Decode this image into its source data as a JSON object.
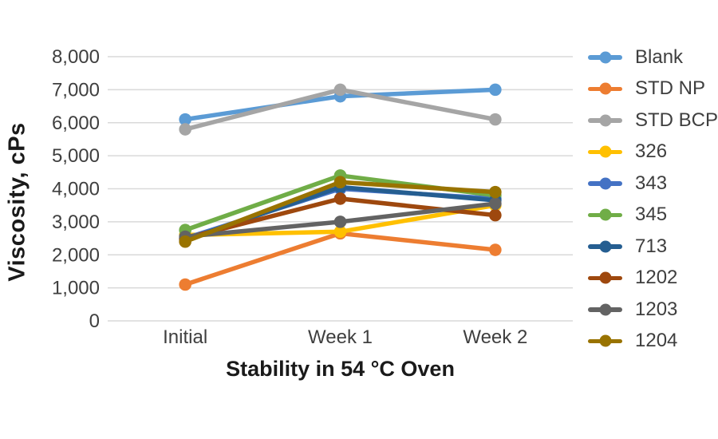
{
  "chart_data": {
    "type": "line",
    "categories": [
      "Initial",
      "Week 1",
      "Week 2"
    ],
    "series": [
      {
        "name": "Blank",
        "color": "#5B9BD5",
        "values": [
          6100,
          6800,
          7000
        ]
      },
      {
        "name": "STD NP",
        "color": "#ED7D31",
        "values": [
          1100,
          2650,
          2150
        ]
      },
      {
        "name": "STD BCP",
        "color": "#A5A5A5",
        "values": [
          5800,
          7000,
          6100
        ]
      },
      {
        "name": "326",
        "color": "#FFC000",
        "values": [
          2600,
          2700,
          3500
        ]
      },
      {
        "name": "343",
        "color": "#4472C4",
        "values": [
          2500,
          4000,
          3700
        ]
      },
      {
        "name": "345",
        "color": "#70AD47",
        "values": [
          2750,
          4400,
          3800
        ]
      },
      {
        "name": "713",
        "color": "#255E91",
        "values": [
          2450,
          4050,
          3650
        ]
      },
      {
        "name": "1202",
        "color": "#9E480E",
        "values": [
          2500,
          3700,
          3200
        ]
      },
      {
        "name": "1203",
        "color": "#636363",
        "values": [
          2550,
          3000,
          3550
        ]
      },
      {
        "name": "1204",
        "color": "#997300",
        "values": [
          2400,
          4200,
          3900
        ]
      }
    ],
    "xlabel": "Stability in 54 °C Oven",
    "ylabel": "Viscosity, cPs",
    "ylim": [
      0,
      8000
    ],
    "ytick_interval": 1000,
    "ytick_labels": [
      "0",
      "1,000",
      "2,000",
      "3,000",
      "4,000",
      "5,000",
      "6,000",
      "7,000",
      "8,000"
    ],
    "grid": true,
    "legend_position": "right"
  },
  "styles": {
    "grid_color": "#D9D9D9",
    "tick_label_color": "#3f3f3f",
    "title_color": "#1a1a1a",
    "background": "#FFFFFF"
  }
}
